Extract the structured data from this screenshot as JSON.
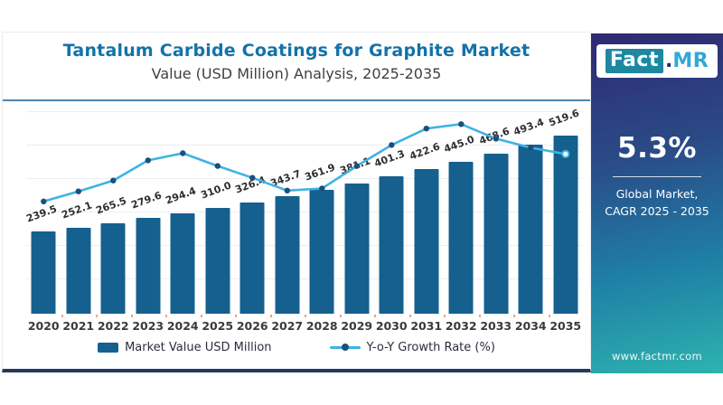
{
  "header": {
    "title": "Tantalum Carbide Coatings for Graphite Market",
    "subtitle": "Value (USD Million) Analysis, 2025-2035"
  },
  "chart_data": {
    "type": "bar",
    "title": "Tantalum Carbide Coatings for Graphite Market",
    "subtitle": "Value (USD Million) Analysis, 2025-2035",
    "categories": [
      "2020",
      "2021",
      "2022",
      "2023",
      "2024",
      "2025",
      "2026",
      "2027",
      "2028",
      "2029",
      "2030",
      "2031",
      "2032",
      "2033",
      "2034",
      "2035"
    ],
    "series": [
      {
        "name": "Market Value USD Million",
        "type": "bar",
        "values": [
          239.5,
          252.1,
          265.5,
          279.6,
          294.4,
          310.0,
          326.4,
          343.7,
          361.9,
          381.1,
          401.3,
          422.6,
          445.0,
          468.6,
          493.4,
          519.6
        ]
      },
      {
        "name": "Y-o-Y Growth Rate (%)",
        "type": "line",
        "axis": "hidden",
        "visual_height_pct_of_plot": [
          54.7,
          59.6,
          64.9,
          74.7,
          78.2,
          72.0,
          66.2,
          60.0,
          61.0,
          72.0,
          82.2,
          90.2,
          92.4,
          85.3,
          80.9,
          77.8
        ]
      }
    ],
    "value_axis_max": 600,
    "grid": true,
    "legend_position": "bottom"
  },
  "legend": {
    "bar_label": "Market Value USD Million",
    "line_label": "Y-o-Y Growth Rate (%)"
  },
  "sidebar": {
    "logo_fact": "Fact",
    "logo_dot": ".",
    "logo_mr": "MR",
    "cagr_value": "5.3%",
    "caption_line1": "Global Market,",
    "caption_line2": "CAGR 2025 - 2035",
    "website": "www.factmr.com"
  },
  "colors": {
    "bar": "#15608f",
    "line": "#3fb3e2",
    "point": "#1b4f7c",
    "title": "#1472a8",
    "panel_top": "#2e2a70",
    "panel_bottom": "#2db3ae",
    "header_divider": "#4d86ad",
    "card_bottom_line": "#24395c",
    "tick": "#e7a78d"
  }
}
